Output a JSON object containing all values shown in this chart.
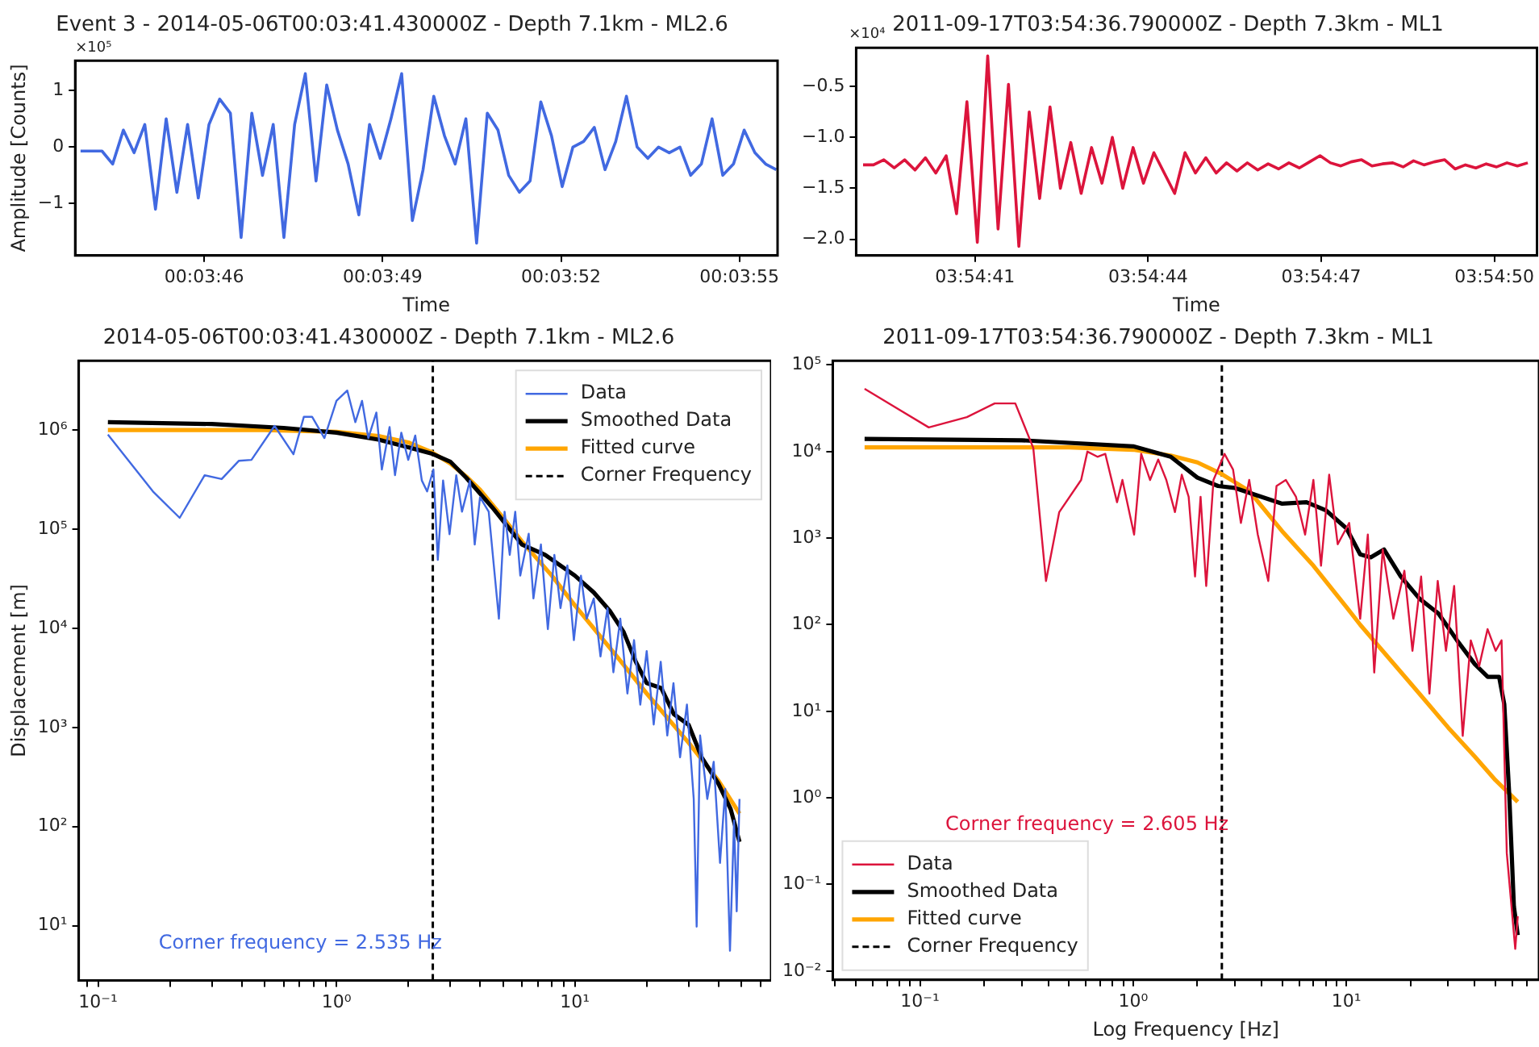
{
  "chart_data": [
    {
      "type": "line",
      "title": "Event 3 - 2014-05-06T00:03:41.430000Z - Depth 7.1km - ML2.6",
      "xlabel": "Time",
      "ylabel": "Amplitude [Counts]",
      "annotations": [
        "×10⁵"
      ],
      "x": [
        0.0622,
        0.06225,
        0.0623,
        0.06235,
        0.0624,
        0.06245,
        0.0625,
        0.06255,
        0.0626,
        0.06265,
        0.0627,
        0.06275,
        0.0628,
        0.06285,
        0.0629,
        0.06295,
        0.063,
        0.06305,
        0.0631,
        0.06315,
        0.0632,
        0.06325,
        0.0633,
        0.06335,
        0.0634,
        0.06345,
        0.0635,
        0.06355,
        0.0636,
        0.06365,
        0.0637,
        0.06375,
        0.0638,
        0.06385,
        0.0639,
        0.06395,
        0.064,
        0.06405,
        0.0641,
        0.06415,
        0.0642,
        0.06425,
        0.0643,
        0.06435,
        0.0644,
        0.06445,
        0.0645,
        0.06455,
        0.0646,
        0.06465,
        0.0647,
        0.06475,
        0.0648,
        0.06485,
        0.0649,
        0.06495,
        0.065,
        0.06505,
        0.0651,
        0.06515,
        0.0652,
        0.06525,
        0.0653,
        0.06535,
        0.0654,
        0.06545
      ],
      "series": [
        {
          "color": "#4169e1",
          "values": [
            -0.07,
            -0.07,
            -0.07,
            -0.3,
            0.3,
            -0.1,
            0.4,
            -1.1,
            0.5,
            -0.8,
            0.4,
            -0.9,
            0.4,
            0.85,
            0.6,
            -1.6,
            0.6,
            -0.5,
            0.4,
            -1.6,
            0.4,
            1.3,
            -0.6,
            1.1,
            0.3,
            -0.3,
            -1.2,
            0.4,
            -0.2,
            0.5,
            1.3,
            -1.3,
            -0.4,
            0.9,
            0.2,
            -0.3,
            0.5,
            -1.7,
            0.6,
            0.3,
            -0.5,
            -0.8,
            -0.6,
            0.8,
            0.2,
            -0.7,
            0.0,
            0.1,
            0.35,
            -0.4,
            0.1,
            0.9,
            0.0,
            -0.2,
            0.0,
            -0.1,
            0.0,
            -0.5,
            -0.3,
            0.5,
            -0.5,
            -0.3,
            0.3,
            -0.1,
            -0.3,
            -0.4
          ]
        }
      ],
      "xlim": [
        0.062175,
        0.065456
      ],
      "xticks": [
        {
          "value": 0.0627778,
          "label": "00:03:46"
        },
        {
          "value": 0.0636111,
          "label": "00:03:49"
        },
        {
          "value": 0.0644444,
          "label": "00:03:52"
        },
        {
          "value": 0.0652778,
          "label": "00:03:55"
        }
      ],
      "ylim": [
        -1.92,
        1.53
      ],
      "yticks": [
        {
          "value": -1,
          "label": "−1"
        },
        0,
        1
      ],
      "grid": false
    },
    {
      "type": "line",
      "title": "2011-09-17T03:54:36.790000Z - Depth 7.3km - ML1",
      "xlabel": "Time",
      "annotations": [
        "×10⁴"
      ],
      "x": [
        3.91085,
        3.9109,
        3.91095,
        3.911,
        3.91105,
        3.9111,
        3.91115,
        3.9112,
        3.91125,
        3.9113,
        3.91135,
        3.9114,
        3.91145,
        3.9115,
        3.91155,
        3.9116,
        3.91165,
        3.9117,
        3.91175,
        3.9118,
        3.91185,
        3.9119,
        3.91195,
        3.912,
        3.91205,
        3.9121,
        3.91215,
        3.9122,
        3.91225,
        3.9123,
        3.91235,
        3.9124,
        3.91245,
        3.9125,
        3.91255,
        3.9126,
        3.91265,
        3.9127,
        3.91275,
        3.9128,
        3.91285,
        3.9129,
        3.91295,
        3.913,
        3.91305,
        3.9131,
        3.91315,
        3.9132,
        3.91325,
        3.9133,
        3.91335,
        3.9134,
        3.91345,
        3.9135,
        3.91355,
        3.9136,
        3.91365,
        3.9137,
        3.91375,
        3.9138,
        3.91385,
        3.9139,
        3.91395,
        3.914,
        3.91405
      ],
      "series": [
        {
          "color": "#dc143c",
          "values": [
            -1.27,
            -1.27,
            -1.22,
            -1.3,
            -1.22,
            -1.32,
            -1.2,
            -1.35,
            -1.18,
            -1.75,
            -0.65,
            -2.03,
            -0.2,
            -1.9,
            -0.48,
            -2.07,
            -0.75,
            -1.6,
            -0.7,
            -1.5,
            -1.05,
            -1.55,
            -1.1,
            -1.45,
            -1.0,
            -1.5,
            -1.1,
            -1.45,
            -1.15,
            -1.35,
            -1.55,
            -1.15,
            -1.35,
            -1.2,
            -1.35,
            -1.25,
            -1.33,
            -1.25,
            -1.32,
            -1.26,
            -1.31,
            -1.25,
            -1.3,
            -1.24,
            -1.18,
            -1.25,
            -1.28,
            -1.24,
            -1.22,
            -1.28,
            -1.26,
            -1.25,
            -1.29,
            -1.23,
            -1.27,
            -1.24,
            -1.22,
            -1.31,
            -1.27,
            -1.3,
            -1.26,
            -1.29,
            -1.25,
            -1.28,
            -1.25
          ]
        }
      ],
      "xlim": [
        3.9108167,
        3.9140944
      ],
      "xticks": [
        {
          "value": 3.9113889,
          "label": "03:54:41"
        },
        {
          "value": 3.9122222,
          "label": "03:54:44"
        },
        {
          "value": 3.9130556,
          "label": "03:54:47"
        },
        {
          "value": 3.9138889,
          "label": "03:54:50"
        }
      ],
      "ylim": [
        -2.16,
        -0.12
      ],
      "yticks": [
        {
          "value": -0.5,
          "label": "−0.5"
        },
        {
          "value": -1.0,
          "label": "−1.0"
        },
        {
          "value": -1.5,
          "label": "−1.5"
        },
        {
          "value": -2.0,
          "label": "−2.0"
        }
      ],
      "grid": false
    },
    {
      "type": "line",
      "title": "2014-05-06T00:03:41.430000Z - Depth 7.1km - ML2.6",
      "ylabel": "Displacement [m]",
      "annotations": [
        "Corner frequency = 2.535 Hz"
      ],
      "log": "xy",
      "grid": false,
      "legend": "top right",
      "series": [
        {
          "name": "Data",
          "color": "#4169e1",
          "x": [
            0.11,
            0.17,
            0.22,
            0.28,
            0.33,
            0.39,
            0.44,
            0.55,
            0.66,
            0.73,
            0.79,
            0.89,
            1.0,
            1.11,
            1.2,
            1.28,
            1.36,
            1.47,
            1.55,
            1.67,
            1.76,
            1.87,
            2.0,
            2.14,
            2.28,
            2.4,
            2.55,
            2.66,
            2.8,
            2.98,
            3.18,
            3.36,
            3.63,
            3.8,
            4.0,
            4.35,
            4.57,
            4.8,
            5.07,
            5.33,
            5.62,
            5.9,
            6.4,
            6.7,
            7.2,
            7.7,
            8.2,
            8.7,
            9.3,
            9.9,
            10.6,
            11.2,
            12.0,
            12.8,
            13.7,
            14.5,
            15.5,
            16.6,
            17.7,
            18.8,
            20,
            21.4,
            22.9,
            24.4,
            25.9,
            27.6,
            29.5,
            31.5,
            32.4,
            33.5,
            35.9,
            38.2,
            40.6,
            42.7,
            44.7,
            46.5,
            47.7,
            49
          ],
          "values": [
            900000,
            240000,
            130000,
            350000,
            320000,
            490000,
            500000,
            1100000,
            570000,
            1360000,
            1360000,
            830000,
            1970000,
            2500000,
            1200000,
            1970000,
            830000,
            1500000,
            400000,
            1070000,
            350000,
            940000,
            500000,
            880000,
            310000,
            240000,
            400000,
            49000,
            310000,
            89000,
            350000,
            150000,
            310000,
            70000,
            210000,
            150000,
            43000,
            12500,
            150000,
            55000,
            150000,
            34000,
            90000,
            20000,
            70000,
            9800,
            55000,
            16000,
            43000,
            7600,
            34000,
            12500,
            20000,
            5200,
            16000,
            3600,
            12500,
            2200,
            7600,
            1700,
            5900,
            1070,
            4600,
            830,
            2800,
            500,
            1700,
            190,
            9.8,
            830,
            190,
            450,
            43,
            240,
            5.6,
            115,
            14,
            190
          ]
        },
        {
          "name": "Smoothed Data",
          "color": "#000000",
          "x": [
            0.11,
            0.3,
            0.6,
            1.0,
            1.5,
            2.0,
            2.5,
            3.0,
            3.5,
            4.5,
            6.0,
            7.5,
            10,
            12,
            14,
            16,
            18,
            20,
            23,
            26,
            30,
            34,
            40,
            45,
            49
          ],
          "values": [
            1200000,
            1150000,
            1050000,
            940000,
            800000,
            670000,
            580000,
            480000,
            330000,
            166000,
            70000,
            55000,
            34000,
            23000,
            15000,
            9200,
            4600,
            2800,
            2500,
            1360,
            1060,
            500,
            270,
            150,
            70
          ]
        },
        {
          "name": "Fitted curve",
          "color": "#ffa500",
          "x": [
            0.11,
            0.5,
            1.0,
            1.5,
            2.0,
            2.5,
            3.0,
            3.5,
            4.0,
            5.0,
            6.0,
            8.0,
            10,
            15,
            20,
            30,
            40,
            49
          ],
          "values": [
            1000000,
            1000000,
            960000,
            870000,
            750000,
            600000,
            460000,
            340000,
            250000,
            130000,
            75000,
            34000,
            17000,
            5200,
            2200,
            700,
            290,
            135
          ]
        },
        {
          "name": "Corner Frequency",
          "color": "#000000",
          "line_style": "dashed",
          "x": [
            2.535,
            2.535
          ],
          "values": [
            2.8,
            5000000
          ]
        }
      ],
      "xlim": [
        0.083,
        66.5
      ],
      "xticks": [
        {
          "value": 0.09,
          "label": null
        },
        {
          "value": 0.1,
          "label": "10⁻¹"
        },
        {
          "value": 0.2,
          "label": null
        },
        {
          "value": 0.3,
          "label": null
        },
        {
          "value": 0.4,
          "label": null
        },
        {
          "value": 0.5,
          "label": null
        },
        {
          "value": 0.6,
          "label": null
        },
        {
          "value": 0.7,
          "label": null
        },
        {
          "value": 0.8,
          "label": null
        },
        {
          "value": 0.9,
          "label": null
        },
        {
          "value": 1,
          "label": "10⁰"
        },
        {
          "value": 2,
          "label": null
        },
        {
          "value": 3,
          "label": null
        },
        {
          "value": 4,
          "label": null
        },
        {
          "value": 5,
          "label": null
        },
        {
          "value": 6,
          "label": null
        },
        {
          "value": 7,
          "label": null
        },
        {
          "value": 8,
          "label": null
        },
        {
          "value": 9,
          "label": null
        },
        {
          "value": 10,
          "label": "10¹"
        },
        {
          "value": 20,
          "label": null
        },
        {
          "value": 30,
          "label": null
        },
        {
          "value": 40,
          "label": null
        },
        {
          "value": 50,
          "label": null
        },
        {
          "value": 60,
          "label": null
        }
      ],
      "ylim": [
        2.8,
        5000000
      ],
      "yticks": [
        {
          "value": 10,
          "label": "10¹"
        },
        {
          "value": 100,
          "label": "10²"
        },
        {
          "value": 1000,
          "label": "10³"
        },
        {
          "value": 10000,
          "label": "10⁴"
        },
        {
          "value": 100000,
          "label": "10⁵"
        },
        {
          "value": 1000000,
          "label": "10⁶"
        }
      ]
    },
    {
      "type": "line",
      "title": "2011-09-17T03:54:36.790000Z - Depth 7.3km - ML1",
      "xlabel": "Log Frequency [Hz]",
      "annotations": [
        "Corner frequency = 2.605 Hz"
      ],
      "log": "xy",
      "grid": false,
      "legend": "bottom left",
      "series": [
        {
          "name": "Data",
          "color": "#dc143c",
          "x": [
            0.055,
            0.11,
            0.166,
            0.224,
            0.28,
            0.34,
            0.39,
            0.45,
            0.57,
            0.61,
            0.68,
            0.74,
            0.84,
            0.89,
            1.01,
            1.09,
            1.2,
            1.31,
            1.43,
            1.57,
            1.69,
            1.82,
            1.95,
            2.07,
            2.2,
            2.38,
            2.68,
            2.94,
            3.2,
            3.5,
            3.84,
            4.3,
            4.7,
            5.2,
            5.8,
            6.4,
            7.0,
            7.6,
            8.3,
            9.1,
            10.3,
            11.6,
            12.6,
            13.5,
            14.8,
            16.6,
            18.7,
            20.4,
            22.4,
            24.5,
            26.8,
            29.3,
            32.0,
            35.1,
            38.3,
            41.9,
            45.9,
            50.1,
            53.4,
            56.5,
            61.9,
            63.6
          ],
          "values": [
            53000,
            19000,
            25000,
            36000,
            36000,
            11000,
            320,
            2000,
            4700,
            10000,
            8700,
            9400,
            2600,
            4700,
            1100,
            9400,
            4700,
            8100,
            4700,
            2000,
            5400,
            3000,
            360,
            3000,
            280,
            4700,
            9400,
            6200,
            1500,
            4700,
            1100,
            320,
            4000,
            4700,
            3000,
            1100,
            4700,
            480,
            5400,
            850,
            1500,
            117,
            1100,
            28,
            740,
            117,
            420,
            50,
            360,
            16,
            320,
            50,
            280,
            5.2,
            66,
            33,
            89,
            50,
            66,
            0.23,
            0.018,
            0.043
          ]
        },
        {
          "name": "Smoothed Data",
          "color": "#000000",
          "x": [
            0.055,
            0.3,
            1.0,
            1.5,
            2.0,
            2.5,
            3.0,
            4.0,
            5.0,
            6.5,
            8.0,
            10,
            11.6,
            13,
            15,
            18,
            22,
            27,
            33,
            40,
            46,
            52,
            55,
            58,
            61,
            63.6
          ],
          "values": [
            14000,
            13500,
            11500,
            8700,
            5000,
            4000,
            3800,
            3000,
            2500,
            2600,
            2100,
            1300,
            650,
            600,
            740,
            360,
            200,
            135,
            66,
            35,
            25,
            25,
            12,
            1.1,
            0.056,
            0.026
          ]
        },
        {
          "name": "Fitted curve",
          "color": "#ffa500",
          "x": [
            0.055,
            0.5,
            1.0,
            1.5,
            2.0,
            2.6,
            3.5,
            5,
            7,
            10,
            11.6,
            20,
            30,
            40,
            50,
            63.6
          ],
          "values": [
            11200,
            11200,
            10500,
            9000,
            7500,
            5500,
            3500,
            1200,
            480,
            160,
            100,
            21,
            6.5,
            3.0,
            1.6,
            0.9
          ]
        },
        {
          "name": "Corner Frequency",
          "color": "#000000",
          "line_style": "dashed",
          "x": [
            2.605,
            2.605
          ],
          "values": [
            0.0079,
            112000
          ]
        }
      ],
      "xlim": [
        0.039,
        80
      ],
      "xticks": [
        {
          "value": 0.04,
          "label": null
        },
        {
          "value": 0.05,
          "label": null
        },
        {
          "value": 0.06,
          "label": null
        },
        {
          "value": 0.07,
          "label": null
        },
        {
          "value": 0.08,
          "label": null
        },
        {
          "value": 0.09,
          "label": null
        },
        {
          "value": 0.1,
          "label": "10⁻¹"
        },
        {
          "value": 0.2,
          "label": null
        },
        {
          "value": 0.3,
          "label": null
        },
        {
          "value": 0.4,
          "label": null
        },
        {
          "value": 0.5,
          "label": null
        },
        {
          "value": 0.6,
          "label": null
        },
        {
          "value": 0.7,
          "label": null
        },
        {
          "value": 0.8,
          "label": null
        },
        {
          "value": 0.9,
          "label": null
        },
        {
          "value": 1,
          "label": "10⁰"
        },
        {
          "value": 2,
          "label": null
        },
        {
          "value": 3,
          "label": null
        },
        {
          "value": 4,
          "label": null
        },
        {
          "value": 5,
          "label": null
        },
        {
          "value": 6,
          "label": null
        },
        {
          "value": 7,
          "label": null
        },
        {
          "value": 8,
          "label": null
        },
        {
          "value": 9,
          "label": null
        },
        {
          "value": 10,
          "label": "10¹"
        },
        {
          "value": 20,
          "label": null
        },
        {
          "value": 30,
          "label": null
        },
        {
          "value": 40,
          "label": null
        },
        {
          "value": 50,
          "label": null
        },
        {
          "value": 60,
          "label": null
        },
        {
          "value": 70,
          "label": null
        }
      ],
      "ylim": [
        0.0079,
        112000
      ],
      "yticks": [
        {
          "value": 0.01,
          "label": "10⁻²"
        },
        {
          "value": 0.1,
          "label": "10⁻¹"
        },
        {
          "value": 1,
          "label": "10⁰"
        },
        {
          "value": 10,
          "label": "10¹"
        },
        {
          "value": 100,
          "label": "10²"
        },
        {
          "value": 1000,
          "label": "10³"
        },
        {
          "value": 10000,
          "label": "10⁴"
        },
        {
          "value": 100000,
          "label": "10⁵"
        }
      ]
    }
  ]
}
